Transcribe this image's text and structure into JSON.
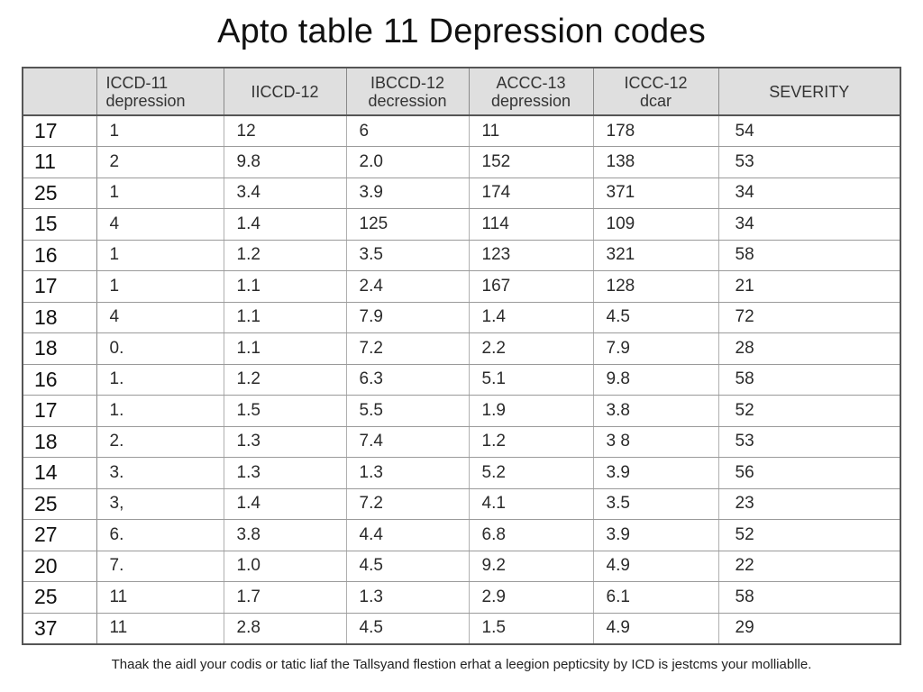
{
  "title": "Apto table 11 Depression codes",
  "table": {
    "headers": [
      "",
      "ICCD-11\ndepression",
      "IICCD-12",
      "IBCCD-12\ndecression",
      "ACCC-13\ndepression",
      "ICCC-12\ndcar",
      "SEVERITY"
    ],
    "rows": [
      [
        "17",
        "1",
        "12",
        "6",
        "11",
        "178",
        "54"
      ],
      [
        "11",
        "2",
        "9.8",
        "2.0",
        "152",
        "138",
        "53"
      ],
      [
        "25",
        "1",
        "3.4",
        "3.9",
        "174",
        "371",
        "34"
      ],
      [
        "15",
        "4",
        "1.4",
        "125",
        "114",
        "109",
        "34"
      ],
      [
        "16",
        "1",
        "1.2",
        "3.5",
        "123",
        "321",
        "58"
      ],
      [
        "17",
        "1",
        "1.1",
        "2.4",
        "167",
        "128",
        "21"
      ],
      [
        "18",
        "4",
        "1.1",
        "7.9",
        "1.4",
        "4.5",
        "72"
      ],
      [
        "18",
        "0.",
        "1.1",
        "7.2",
        "2.2",
        "7.9",
        "28"
      ],
      [
        "16",
        "1.",
        "1.2",
        "6.3",
        "5.1",
        "9.8",
        "58"
      ],
      [
        "17",
        "1.",
        "1.5",
        "5.5",
        "1.9",
        "3.8",
        "52"
      ],
      [
        "18",
        "2.",
        "1.3",
        "7.4",
        "1.2",
        "3 8",
        "53"
      ],
      [
        "14",
        "3.",
        "1.3",
        "1.3",
        "5.2",
        "3.9",
        "56"
      ],
      [
        "25",
        "3,",
        "1.4",
        "7.2",
        "4.1",
        "3.5",
        "23"
      ],
      [
        "27",
        "6.",
        "3.8",
        "4.4",
        "6.8",
        "3.9",
        "52"
      ],
      [
        "20",
        "7.",
        "1.0",
        "4.5",
        "9.2",
        "4.9",
        "22"
      ],
      [
        "25",
        "11",
        "1.7",
        "1.3",
        "2.9",
        "6.1",
        "58"
      ],
      [
        "37",
        "11",
        "2.8",
        "4.5",
        "1.5",
        "4.9",
        "29"
      ]
    ]
  },
  "footnote": "Thaak the aidl your codis or tatic liaf the Tallsyand flestion erhat a leegion pepticsity by ICD is jestcms your molliablle."
}
